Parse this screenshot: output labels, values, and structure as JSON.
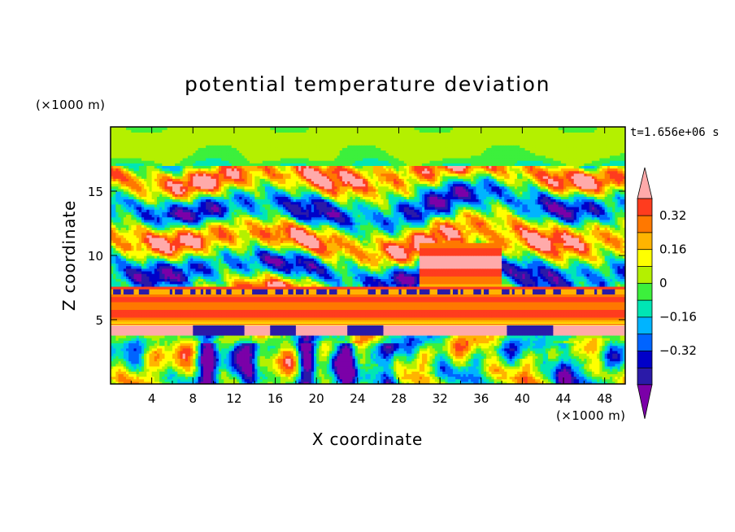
{
  "chart_data": {
    "type": "heatmap",
    "title": "potential temperature deviation",
    "xlabel": "X coordinate",
    "ylabel": "Z coordinate",
    "x_unit": "(×1000 m)",
    "y_unit": "(×1000 m)",
    "time_label": "t=1.656e+06 s",
    "xlim": [
      0,
      50
    ],
    "ylim": [
      0,
      20
    ],
    "x_ticks": [
      "4",
      "8",
      "12",
      "16",
      "20",
      "24",
      "28",
      "32",
      "36",
      "40",
      "44",
      "48"
    ],
    "y_ticks": [
      "5",
      "10",
      "15"
    ],
    "levels": [
      -0.48,
      -0.4,
      -0.32,
      -0.24,
      -0.16,
      -0.08,
      0,
      0.08,
      0.16,
      0.24,
      0.32,
      0.4
    ],
    "colorbar_labels": [
      "0.32",
      "0.16",
      "0",
      "−0.16",
      "−0.32"
    ],
    "colormap": [
      "#7b00a8",
      "#2a1aa8",
      "#0000c8",
      "#0064ff",
      "#00b4ff",
      "#00e6b4",
      "#3cf03c",
      "#b4f000",
      "#ffff00",
      "#ffb400",
      "#ff7800",
      "#ff3c1e",
      "#ffaaaa"
    ]
  }
}
